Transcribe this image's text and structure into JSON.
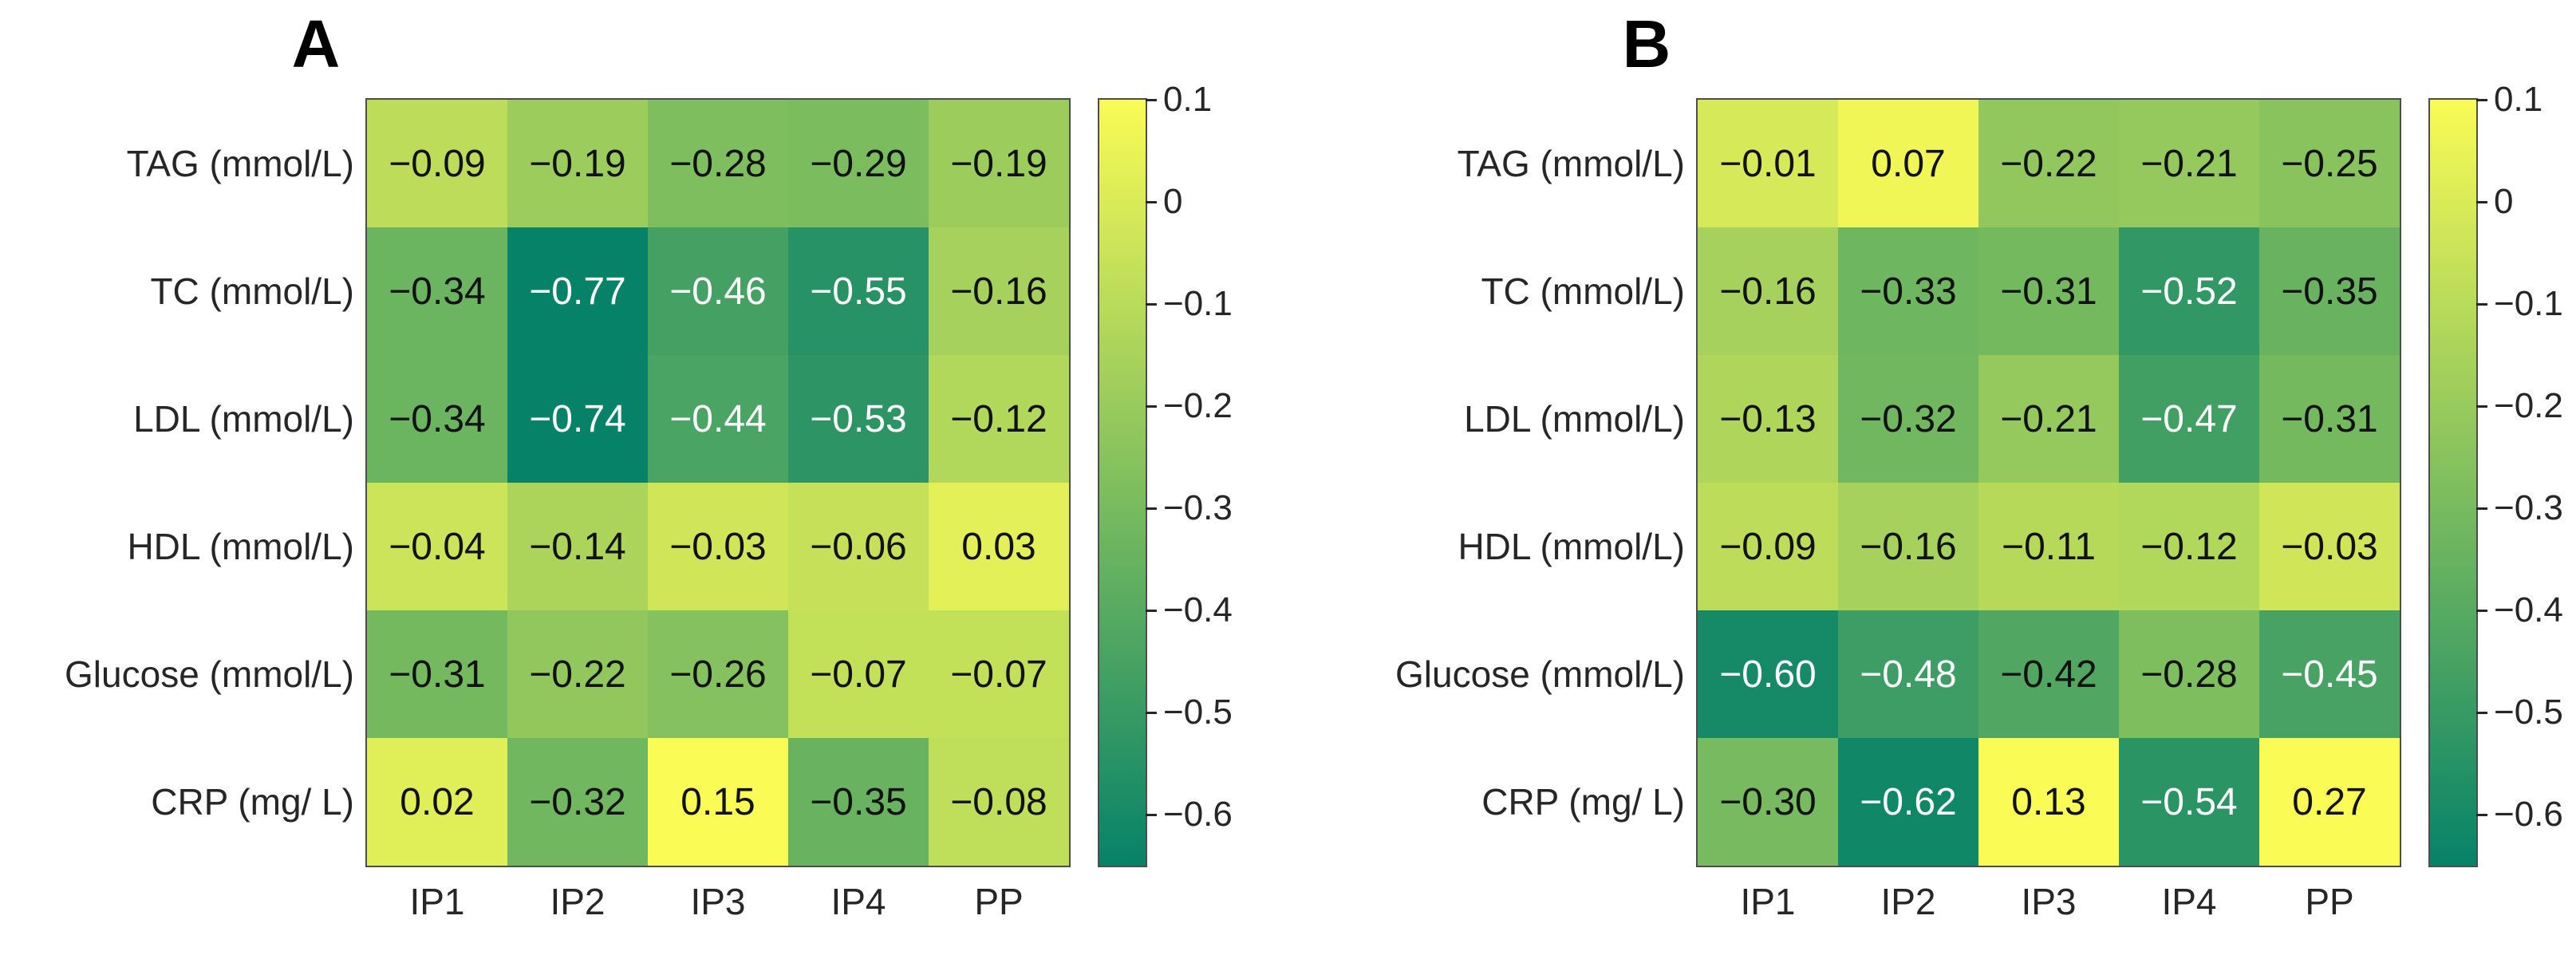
{
  "figure": {
    "background": "#ffffff",
    "border_color": "#4d4d4d",
    "tick_color": "#262626",
    "label_color": "#262626"
  },
  "colormap": {
    "type": "summer_reversed",
    "vmin": -0.65,
    "vmax": 0.1,
    "max_color": "#fafb55",
    "min_color": "#068268",
    "value_text_dark": "#111111",
    "value_text_light": "#ffffff",
    "white_text_threshold": -0.43
  },
  "chart_data": [
    {
      "type": "heatmap",
      "title": "A",
      "rows": [
        "TAG (mmol/L)",
        "TC (mmol/L)",
        "LDL (mmol/L)",
        "HDL (mmol/L)",
        "Glucose (mmol/L)",
        "CRP (mg/ L)"
      ],
      "columns": [
        "IP1",
        "IP2",
        "IP3",
        "IP4",
        "PP"
      ],
      "values": [
        [
          -0.09,
          -0.19,
          -0.28,
          -0.29,
          -0.19
        ],
        [
          -0.34,
          -0.77,
          -0.46,
          -0.55,
          -0.16
        ],
        [
          -0.34,
          -0.74,
          -0.44,
          -0.53,
          -0.12
        ],
        [
          -0.04,
          -0.14,
          -0.03,
          -0.06,
          0.03
        ],
        [
          -0.31,
          -0.22,
          -0.26,
          -0.07,
          -0.07
        ],
        [
          0.02,
          -0.32,
          0.15,
          -0.35,
          -0.08
        ]
      ],
      "value_range": [
        -0.65,
        0.1
      ],
      "colorbar_ticks": [
        {
          "label": "0.1",
          "value": 0.1
        },
        {
          "label": "0",
          "value": 0
        },
        {
          "label": "−0.1",
          "value": -0.1
        },
        {
          "label": "−0.2",
          "value": -0.2
        },
        {
          "label": "−0.3",
          "value": -0.3
        },
        {
          "label": "−0.4",
          "value": -0.4
        },
        {
          "label": "−0.5",
          "value": -0.5
        },
        {
          "label": "−0.6",
          "value": -0.6
        }
      ]
    },
    {
      "type": "heatmap",
      "title": "B",
      "rows": [
        "TAG (mmol/L)",
        "TC (mmol/L)",
        "LDL (mmol/L)",
        "HDL (mmol/L)",
        "Glucose (mmol/L)",
        "CRP (mg/ L)"
      ],
      "columns": [
        "IP1",
        "IP2",
        "IP3",
        "IP4",
        "PP"
      ],
      "values": [
        [
          -0.01,
          0.07,
          -0.22,
          -0.21,
          -0.25
        ],
        [
          -0.16,
          -0.33,
          -0.31,
          -0.52,
          -0.35
        ],
        [
          -0.13,
          -0.32,
          -0.21,
          -0.47,
          -0.31
        ],
        [
          -0.09,
          -0.16,
          -0.11,
          -0.12,
          -0.03
        ],
        [
          -0.6,
          -0.48,
          -0.42,
          -0.28,
          -0.45
        ],
        [
          -0.3,
          -0.62,
          0.13,
          -0.54,
          0.27
        ]
      ],
      "value_range": [
        -0.65,
        0.1
      ],
      "colorbar_ticks": [
        {
          "label": "0.1",
          "value": 0.1
        },
        {
          "label": "0",
          "value": 0
        },
        {
          "label": "−0.1",
          "value": -0.1
        },
        {
          "label": "−0.2",
          "value": -0.2
        },
        {
          "label": "−0.3",
          "value": -0.3
        },
        {
          "label": "−0.4",
          "value": -0.4
        },
        {
          "label": "−0.5",
          "value": -0.5
        },
        {
          "label": "−0.6",
          "value": -0.6
        }
      ]
    }
  ]
}
